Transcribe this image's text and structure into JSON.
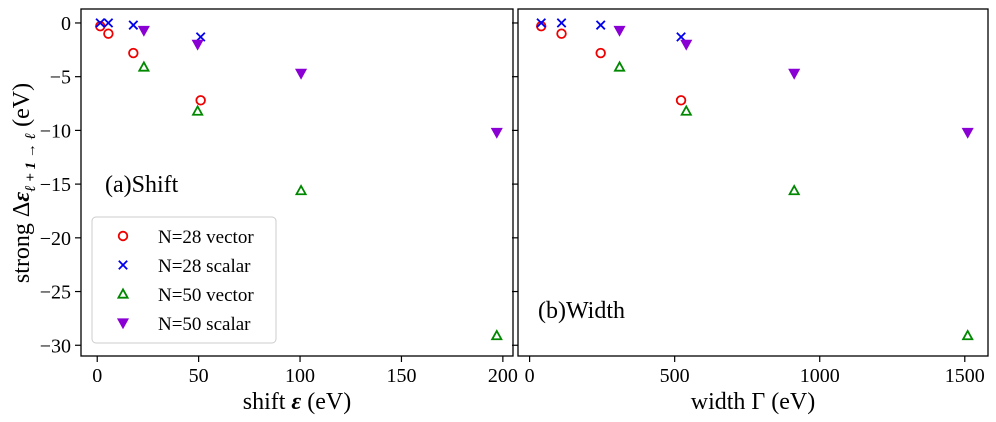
{
  "chart_data": [
    {
      "type": "scatter",
      "panel_label": "(a)Shift",
      "xlabel": "shift ε (eV)",
      "ylabel": "strong Δε_{ℓ+1→ℓ} (eV)",
      "xlim": [
        -8,
        205
      ],
      "ylim": [
        -31,
        1.3
      ],
      "xticks": [
        0,
        50,
        100,
        150,
        200
      ],
      "yticks": [
        0,
        -5,
        -10,
        -15,
        -20,
        -25,
        -30
      ],
      "xtick_labels": [
        "0",
        "50",
        "100",
        "150",
        "200"
      ],
      "ytick_labels": [
        "0",
        "−5",
        "−10",
        "−15",
        "−20",
        "−25",
        "−30"
      ],
      "series": [
        {
          "name": "N=28 vector",
          "marker": "circle-open",
          "color": "#ee0000",
          "points": [
            [
              1.5,
              -0.3
            ],
            [
              5.5,
              -1.0
            ],
            [
              17.8,
              -2.8
            ],
            [
              51.0,
              -7.2
            ]
          ]
        },
        {
          "name": "N=28 scalar",
          "marker": "x",
          "color": "#0000ee",
          "points": [
            [
              1.5,
              0.0
            ],
            [
              5.5,
              0.0
            ],
            [
              17.8,
              -0.2
            ],
            [
              51.0,
              -1.3
            ]
          ]
        },
        {
          "name": "N=50 vector",
          "marker": "triangle-up-open",
          "color": "#008800",
          "points": [
            [
              23.0,
              -4.1
            ],
            [
              49.5,
              -8.2
            ],
            [
              100.5,
              -15.6
            ],
            [
              197.0,
              -29.1
            ]
          ]
        },
        {
          "name": "N=50 scalar",
          "marker": "triangle-down-filled",
          "color": "#8a00d4",
          "points": [
            [
              23.0,
              -0.7
            ],
            [
              49.5,
              -2.0
            ],
            [
              100.5,
              -4.7
            ],
            [
              197.0,
              -10.2
            ]
          ]
        }
      ]
    },
    {
      "type": "scatter",
      "panel_label": "(b)Width",
      "xlabel": "width Γ (eV)",
      "ylabel": "",
      "xlim": [
        -40,
        1580
      ],
      "ylim": [
        -31,
        1.3
      ],
      "xticks": [
        0,
        500,
        1000,
        1500
      ],
      "yticks": [
        0,
        -5,
        -10,
        -15,
        -20,
        -25,
        -30
      ],
      "xtick_labels": [
        "0",
        "500",
        "1000",
        "1500"
      ],
      "ytick_labels": [],
      "series": [
        {
          "name": "N=28 vector",
          "marker": "circle-open",
          "color": "#ee0000",
          "points": [
            [
              40,
              -0.3
            ],
            [
              110,
              -1.0
            ],
            [
              245,
              -2.8
            ],
            [
              522,
              -7.2
            ]
          ]
        },
        {
          "name": "N=28 scalar",
          "marker": "x",
          "color": "#0000ee",
          "points": [
            [
              40,
              0.0
            ],
            [
              110,
              0.0
            ],
            [
              245,
              -0.2
            ],
            [
              522,
              -1.3
            ]
          ]
        },
        {
          "name": "N=50 vector",
          "marker": "triangle-up-open",
          "color": "#008800",
          "points": [
            [
              310,
              -4.1
            ],
            [
              540,
              -8.2
            ],
            [
              912,
              -15.6
            ],
            [
              1510,
              -29.1
            ]
          ]
        },
        {
          "name": "N=50 scalar",
          "marker": "triangle-down-filled",
          "color": "#8a00d4",
          "points": [
            [
              310,
              -0.7
            ],
            [
              540,
              -2.0
            ],
            [
              912,
              -4.7
            ],
            [
              1510,
              -10.2
            ]
          ]
        }
      ]
    }
  ],
  "legend": {
    "location": "lower-left of panel (a)",
    "entries": [
      {
        "label": "N=28 vector",
        "marker": "circle-open",
        "color": "#ee0000"
      },
      {
        "label": "N=28 scalar",
        "marker": "x",
        "color": "#0000ee"
      },
      {
        "label": "N=50 vector",
        "marker": "triangle-up-open",
        "color": "#008800"
      },
      {
        "label": "N=50 scalar",
        "marker": "triangle-down-filled",
        "color": "#8a00d4"
      }
    ]
  },
  "ylabel_parts": {
    "prefix": "strong Δ",
    "symbol": "ε",
    "subscript": "ℓ + 1 → ℓ",
    "suffix": " (eV)"
  },
  "xlabel_parts_a": {
    "prefix": "shift ",
    "symbol": "ε",
    "suffix": " (eV)"
  },
  "xlabel_parts_b": {
    "text": "width Γ (eV)"
  }
}
